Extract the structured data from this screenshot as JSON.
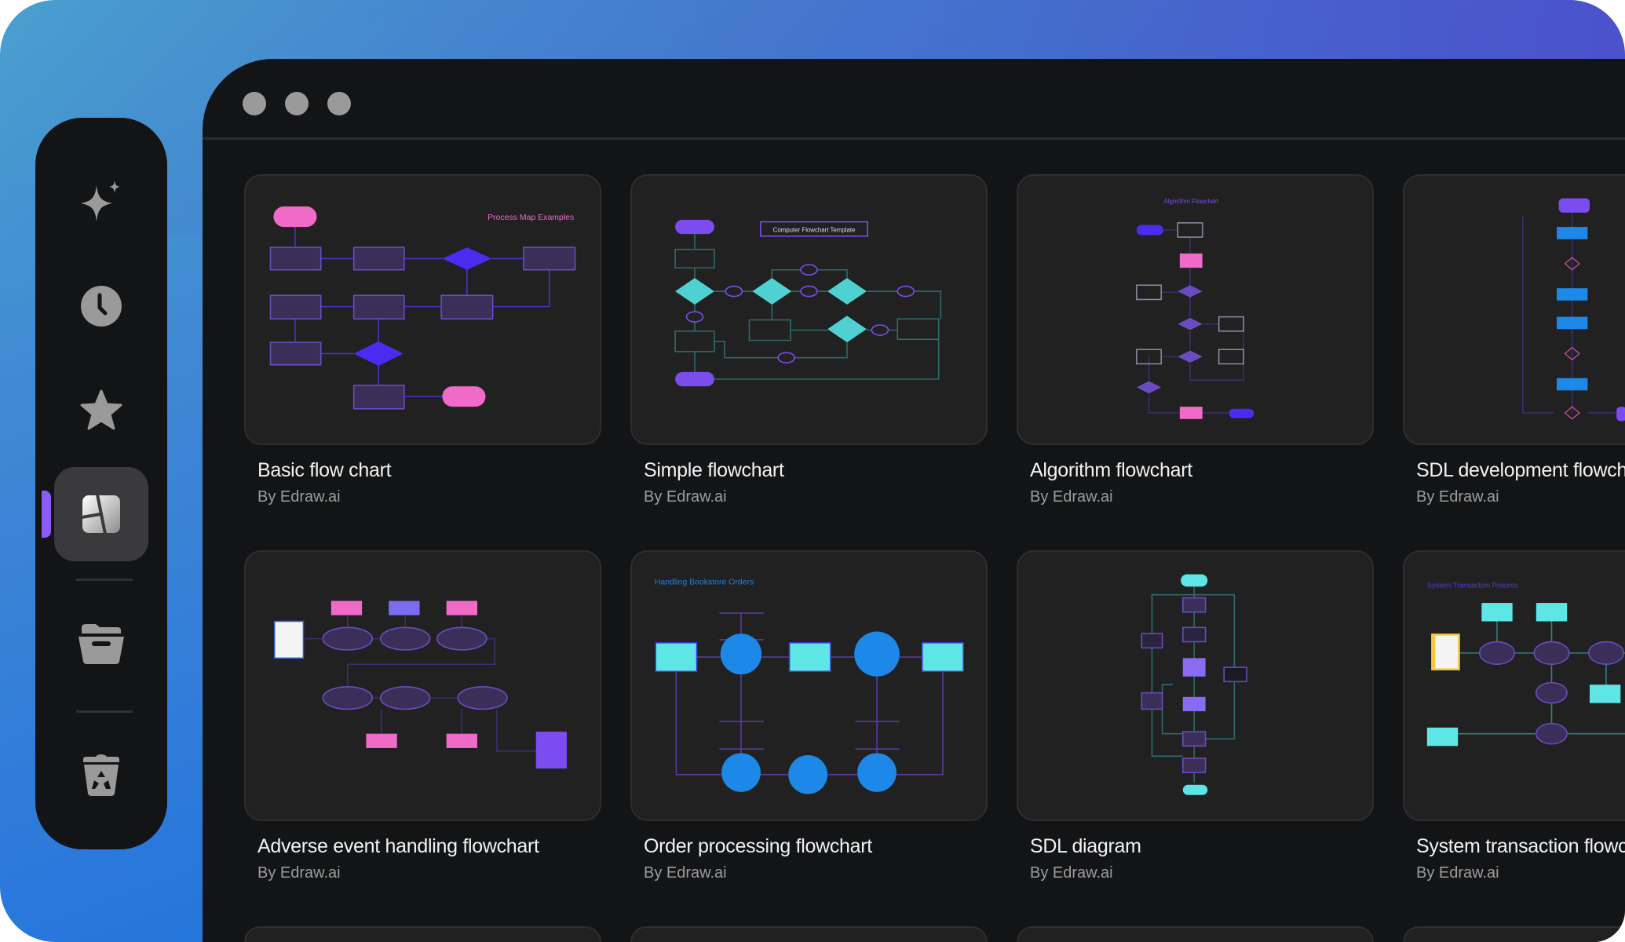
{
  "sidebar": {
    "items": [
      {
        "id": "ai",
        "icon": "sparkle-icon",
        "active": false
      },
      {
        "id": "recent",
        "icon": "clock-icon",
        "active": false
      },
      {
        "id": "favorites",
        "icon": "star-icon",
        "active": false
      },
      {
        "id": "templates",
        "icon": "templates-icon",
        "active": true
      },
      {
        "id": "files",
        "icon": "folder-icon",
        "active": false
      },
      {
        "id": "trash",
        "icon": "recycle-bin-icon",
        "active": false
      }
    ],
    "accent_color": "#8a5cf5"
  },
  "window": {
    "controls": [
      "window-dot",
      "window-dot",
      "window-dot"
    ]
  },
  "cards": [
    {
      "title": "Basic flow chart",
      "author": "By Edraw.ai",
      "thumbnail_title": "Process Map Examples"
    },
    {
      "title": "Simple flowchart",
      "author": "By Edraw.ai",
      "thumbnail_title": "Computer Flowchart Template"
    },
    {
      "title": "Algorithm flowchart",
      "author": "By Edraw.ai",
      "thumbnail_title": "Algorithm Flowchart"
    },
    {
      "title": "SDL development flowchart",
      "author": "By Edraw.ai",
      "thumbnail_title": ""
    },
    {
      "title": "Adverse event handling flowchart",
      "author": "By Edraw.ai",
      "thumbnail_title": ""
    },
    {
      "title": "Order processing flowchart",
      "author": "By Edraw.ai",
      "thumbnail_title": "Handling Bookstore Orders"
    },
    {
      "title": "SDL diagram",
      "author": "By Edraw.ai",
      "thumbnail_title": ""
    },
    {
      "title": "System transaction flowchart",
      "author": "By Edraw.ai",
      "thumbnail_title": "System Transaction Process"
    },
    {
      "title": "",
      "author": "",
      "thumbnail_title": ""
    },
    {
      "title": "",
      "author": "",
      "thumbnail_title": ""
    },
    {
      "title": "",
      "author": "",
      "thumbnail_title": ""
    },
    {
      "title": "",
      "author": "",
      "thumbnail_title": ""
    }
  ],
  "colors": {
    "pink": "#f06ac8",
    "purple": "#7b4cf0",
    "teal": "#4fd1d1",
    "blue": "#1e88e8",
    "cyan": "#5ee6e6"
  }
}
